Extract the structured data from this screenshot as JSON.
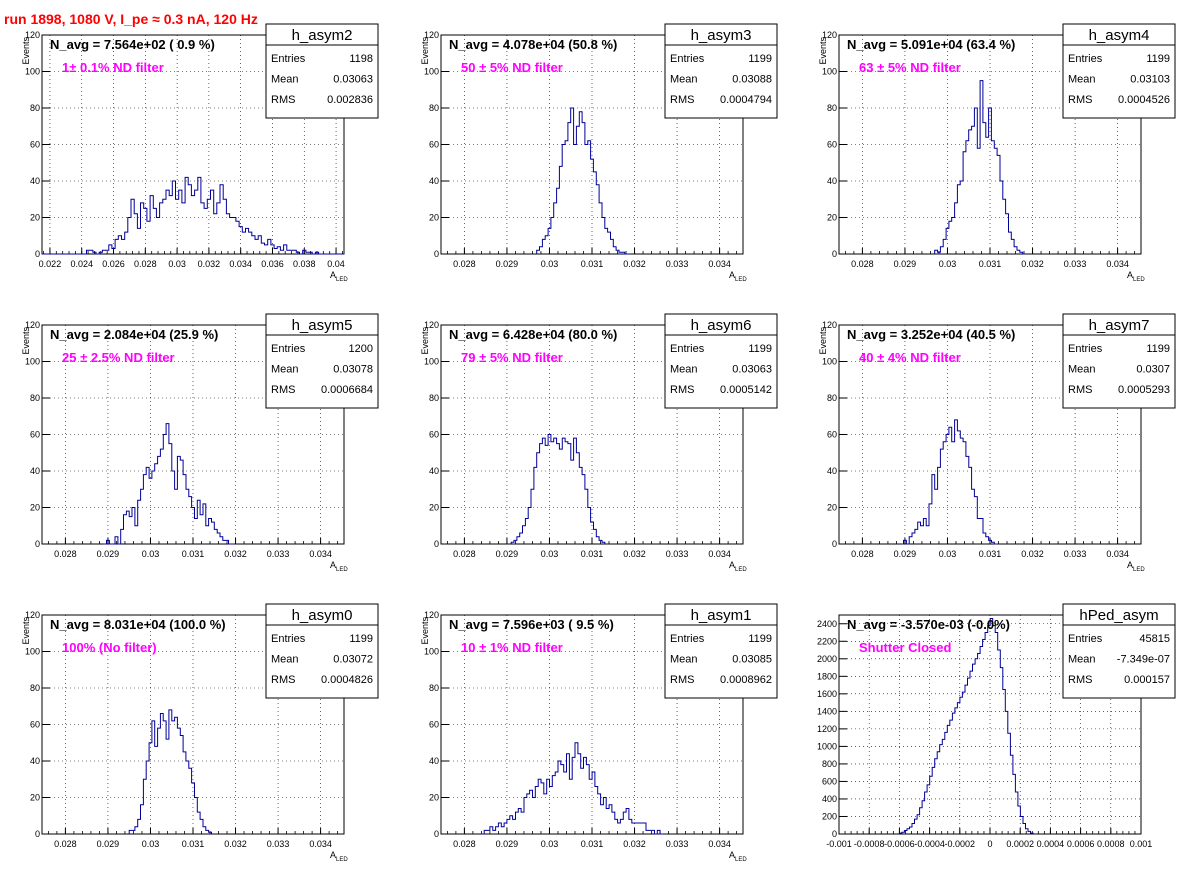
{
  "title": "run 1898,  1080 V, I_pe ≈ 0.3 nA, 120 Hz",
  "chart_data": [
    {
      "type": "bar",
      "subtype": "histogram",
      "name": "h_asym2",
      "navg": "N_avg = 7.564e+02 ( 0.9 %)",
      "filter": "1± 0.1% ND filter",
      "stats": {
        "entries": "1198",
        "mean": "0.03063",
        "rms": "0.002836"
      },
      "xlabel": "A",
      "xlabel_sub": "LED",
      "ylabel": "Events",
      "xlim": [
        0.0215,
        0.0405
      ],
      "ylim": [
        0,
        120
      ],
      "xticks": [
        0.022,
        0.024,
        0.026,
        0.028,
        0.03,
        0.032,
        0.034,
        0.036,
        0.038,
        0.04
      ],
      "xtick_labels": [
        "0.022",
        "0.024",
        "0.026",
        "0.028",
        "0.03",
        "0.032",
        "0.034",
        "0.036",
        "0.038",
        "0.04"
      ],
      "yticks": [
        0,
        20,
        40,
        60,
        80,
        100,
        120
      ],
      "ytick_labels": [
        "0",
        "20",
        "40",
        "60",
        "80",
        "100",
        "120"
      ],
      "bins": {
        "start": 0.0215,
        "width": 0.0002,
        "counts": [
          0,
          0,
          0,
          0,
          0,
          0,
          0,
          0,
          0,
          0,
          0,
          0,
          0,
          0,
          2,
          2,
          1,
          0,
          1,
          2,
          2,
          5,
          3,
          8,
          10,
          8,
          12,
          20,
          30,
          22,
          14,
          28,
          25,
          18,
          32,
          25,
          20,
          28,
          30,
          35,
          32,
          40,
          30,
          35,
          28,
          42,
          38,
          32,
          35,
          42,
          28,
          25,
          30,
          35,
          22,
          28,
          38,
          30,
          22,
          20,
          20,
          18,
          15,
          12,
          14,
          12,
          10,
          8,
          10,
          6,
          5,
          8,
          5,
          3,
          4,
          2,
          5,
          2,
          2,
          2,
          1,
          0,
          2,
          1,
          1,
          0,
          1,
          0,
          0,
          0,
          0,
          0,
          0,
          0,
          0
        ]
      }
    },
    {
      "type": "bar",
      "subtype": "histogram",
      "name": "h_asym3",
      "navg": "N_avg = 4.078e+04 (50.8 %)",
      "filter": "50 ± 5% ND filter",
      "stats": {
        "entries": "1199",
        "mean": "0.03088",
        "rms": "0.0004794"
      },
      "xlabel": "A",
      "xlabel_sub": "LED",
      "ylabel": "Events",
      "xlim": [
        0.02745,
        0.03455
      ],
      "ylim": [
        0,
        120
      ],
      "xticks": [
        0.028,
        0.029,
        0.03,
        0.031,
        0.032,
        0.033,
        0.034
      ],
      "xtick_labels": [
        "0.028",
        "0.029",
        "0.03",
        "0.031",
        "0.032",
        "0.033",
        "0.034"
      ],
      "yticks": [
        0,
        20,
        40,
        60,
        80,
        100,
        120
      ],
      "ytick_labels": [
        "0",
        "20",
        "40",
        "60",
        "80",
        "100",
        "120"
      ],
      "bins": {
        "start": 0.0297,
        "width": 6.67e-05,
        "counts": [
          2,
          4,
          8,
          10,
          14,
          20,
          28,
          36,
          48,
          60,
          62,
          72,
          80,
          60,
          70,
          78,
          72,
          60,
          62,
          52,
          45,
          38,
          28,
          20,
          14,
          12,
          8,
          4,
          2,
          1,
          1,
          0,
          0
        ]
      }
    },
    {
      "type": "bar",
      "subtype": "histogram",
      "name": "h_asym4",
      "navg": "N_avg = 5.091e+04 (63.4 %)",
      "filter": "63 ± 5% ND filter",
      "stats": {
        "entries": "1199",
        "mean": "0.03103",
        "rms": "0.0004526"
      },
      "xlabel": "A",
      "xlabel_sub": "LED",
      "ylabel": "Events",
      "xlim": [
        0.02745,
        0.03455
      ],
      "ylim": [
        0,
        120
      ],
      "xticks": [
        0.028,
        0.029,
        0.03,
        0.031,
        0.032,
        0.033,
        0.034
      ],
      "xtick_labels": [
        "0.028",
        "0.029",
        "0.03",
        "0.031",
        "0.032",
        "0.033",
        "0.034"
      ],
      "yticks": [
        0,
        20,
        40,
        60,
        80,
        100,
        120
      ],
      "ytick_labels": [
        "0",
        "20",
        "40",
        "60",
        "80",
        "100",
        "120"
      ],
      "bins": {
        "start": 0.0297,
        "width": 6.67e-05,
        "counts": [
          2,
          1,
          4,
          8,
          14,
          18,
          20,
          28,
          38,
          40,
          56,
          62,
          68,
          70,
          80,
          58,
          95,
          72,
          64,
          80,
          62,
          58,
          54,
          40,
          30,
          22,
          12,
          8,
          4,
          2,
          1,
          0
        ]
      }
    },
    {
      "type": "bar",
      "subtype": "histogram",
      "name": "h_asym5",
      "navg": "N_avg = 2.084e+04 (25.9 %)",
      "filter": "25 ± 2.5% ND filter",
      "stats": {
        "entries": "1200",
        "mean": "0.03078",
        "rms": "0.0006684"
      },
      "xlabel": "A",
      "xlabel_sub": "LED",
      "ylabel": "Events",
      "xlim": [
        0.02745,
        0.03455
      ],
      "ylim": [
        0,
        120
      ],
      "xticks": [
        0.028,
        0.029,
        0.03,
        0.031,
        0.032,
        0.033,
        0.034
      ],
      "xtick_labels": [
        "0.028",
        "0.029",
        "0.03",
        "0.031",
        "0.032",
        "0.033",
        "0.034"
      ],
      "yticks": [
        0,
        20,
        40,
        60,
        80,
        100,
        120
      ],
      "ytick_labels": [
        "0",
        "20",
        "40",
        "60",
        "80",
        "100",
        "120"
      ],
      "bins": {
        "start": 0.0289,
        "width": 6.67e-05,
        "counts": [
          0,
          2,
          0,
          0,
          4,
          0,
          8,
          16,
          18,
          15,
          20,
          10,
          24,
          30,
          38,
          42,
          36,
          40,
          44,
          48,
          52,
          60,
          66,
          55,
          40,
          30,
          48,
          46,
          38,
          30,
          26,
          20,
          14,
          24,
          16,
          22,
          10,
          14,
          12,
          8,
          6,
          4,
          2,
          2,
          0,
          0
        ]
      }
    },
    {
      "type": "bar",
      "subtype": "histogram",
      "name": "h_asym6",
      "navg": "N_avg = 6.428e+04 (80.0 %)",
      "filter": "79 ± 5% ND filter",
      "stats": {
        "entries": "1199",
        "mean": "0.03063",
        "rms": "0.0005142"
      },
      "xlabel": "A",
      "xlabel_sub": "LED",
      "ylabel": "Events",
      "xlim": [
        0.02745,
        0.03455
      ],
      "ylim": [
        0,
        120
      ],
      "xticks": [
        0.028,
        0.029,
        0.03,
        0.031,
        0.032,
        0.033,
        0.034
      ],
      "xtick_labels": [
        "0.028",
        "0.029",
        "0.03",
        "0.031",
        "0.032",
        "0.033",
        "0.034"
      ],
      "yticks": [
        0,
        20,
        40,
        60,
        80,
        100,
        120
      ],
      "ytick_labels": [
        "0",
        "20",
        "40",
        "60",
        "80",
        "100",
        "120"
      ],
      "bins": {
        "start": 0.0291,
        "width": 6.67e-05,
        "counts": [
          1,
          2,
          4,
          6,
          10,
          14,
          20,
          30,
          42,
          50,
          55,
          58,
          54,
          60,
          56,
          58,
          55,
          52,
          58,
          56,
          55,
          46,
          58,
          50,
          42,
          38,
          30,
          20,
          12,
          8,
          4,
          2,
          1
        ]
      }
    },
    {
      "type": "bar",
      "subtype": "histogram",
      "name": "h_asym7",
      "navg": "N_avg = 3.252e+04 (40.5 %)",
      "filter": "40 ± 4% ND filter",
      "stats": {
        "entries": "1199",
        "mean": "0.0307",
        "rms": "0.0005293"
      },
      "xlabel": "A",
      "xlabel_sub": "LED",
      "ylabel": "Events",
      "xlim": [
        0.02745,
        0.03455
      ],
      "ylim": [
        0,
        120
      ],
      "xticks": [
        0.028,
        0.029,
        0.03,
        0.031,
        0.032,
        0.033,
        0.034
      ],
      "xtick_labels": [
        "0.028",
        "0.029",
        "0.03",
        "0.031",
        "0.032",
        "0.033",
        "0.034"
      ],
      "yticks": [
        0,
        20,
        40,
        60,
        80,
        100,
        120
      ],
      "ytick_labels": [
        "0",
        "20",
        "40",
        "60",
        "80",
        "100",
        "120"
      ],
      "bins": {
        "start": 0.0289,
        "width": 6.67e-05,
        "counts": [
          0,
          2,
          0,
          4,
          6,
          8,
          12,
          10,
          14,
          10,
          22,
          38,
          30,
          42,
          52,
          56,
          60,
          64,
          56,
          68,
          62,
          58,
          56,
          48,
          42,
          30,
          26,
          14,
          14,
          6,
          4,
          2,
          1,
          0
        ]
      }
    },
    {
      "type": "bar",
      "subtype": "histogram",
      "name": "h_asym0",
      "navg": "N_avg = 8.031e+04 (100.0 %)",
      "filter": "100% (No filter)",
      "stats": {
        "entries": "1199",
        "mean": "0.03072",
        "rms": "0.0004826"
      },
      "xlabel": "A",
      "xlabel_sub": "LED",
      "ylabel": "Events",
      "xlim": [
        0.02745,
        0.03455
      ],
      "ylim": [
        0,
        120
      ],
      "xticks": [
        0.028,
        0.029,
        0.03,
        0.031,
        0.032,
        0.033,
        0.034
      ],
      "xtick_labels": [
        "0.028",
        "0.029",
        "0.03",
        "0.031",
        "0.032",
        "0.033",
        "0.034"
      ],
      "yticks": [
        0,
        20,
        40,
        60,
        80,
        100,
        120
      ],
      "ytick_labels": [
        "0",
        "20",
        "40",
        "60",
        "80",
        "100",
        "120"
      ],
      "bins": {
        "start": 0.0295,
        "width": 6.67e-05,
        "counts": [
          2,
          2,
          4,
          8,
          16,
          30,
          40,
          50,
          62,
          48,
          58,
          66,
          62,
          52,
          68,
          62,
          64,
          58,
          54,
          45,
          40,
          36,
          28,
          20,
          12,
          8,
          4,
          2,
          1
        ]
      }
    },
    {
      "type": "bar",
      "subtype": "histogram",
      "name": "h_asym1",
      "navg": "N_avg = 7.596e+03 ( 9.5 %)",
      "filter": "10 ± 1% ND filter",
      "stats": {
        "entries": "1199",
        "mean": "0.03085",
        "rms": "0.0008962"
      },
      "xlabel": "A",
      "xlabel_sub": "LED",
      "ylabel": "Events",
      "xlim": [
        0.02745,
        0.03455
      ],
      "ylim": [
        0,
        120
      ],
      "xticks": [
        0.028,
        0.029,
        0.03,
        0.031,
        0.032,
        0.033,
        0.034
      ],
      "xtick_labels": [
        "0.028",
        "0.029",
        "0.03",
        "0.031",
        "0.032",
        "0.033",
        "0.034"
      ],
      "yticks": [
        0,
        20,
        40,
        60,
        80,
        100,
        120
      ],
      "ytick_labels": [
        "0",
        "20",
        "40",
        "60",
        "80",
        "100",
        "120"
      ],
      "bins": {
        "start": 0.0284,
        "width": 6.67e-05,
        "counts": [
          0,
          2,
          2,
          4,
          2,
          4,
          6,
          4,
          6,
          8,
          10,
          8,
          12,
          14,
          12,
          20,
          22,
          24,
          20,
          26,
          30,
          28,
          22,
          30,
          26,
          32,
          34,
          40,
          38,
          34,
          44,
          30,
          42,
          50,
          44,
          36,
          42,
          38,
          30,
          34,
          26,
          22,
          16,
          20,
          14,
          16,
          12,
          8,
          6,
          8,
          12,
          14,
          8,
          6,
          6,
          6,
          6,
          6,
          2,
          2,
          2,
          0,
          2,
          0
        ]
      }
    },
    {
      "type": "bar",
      "subtype": "histogram",
      "name": "hPed_asym",
      "navg": "N_avg = -3.570e-03 (-0.0%)",
      "filter": "Shutter Closed",
      "stats": {
        "entries": "45815",
        "mean": "-7.349e-07",
        "rms": "0.000157"
      },
      "xlabel": "",
      "xlabel_sub": "",
      "ylabel": "",
      "xlim": [
        -0.001,
        0.001
      ],
      "ylim": [
        0,
        2500
      ],
      "xticks": [
        -0.001,
        -0.0008,
        -0.0006,
        -0.0004,
        -0.0002,
        0,
        0.0002,
        0.0004,
        0.0006,
        0.0008,
        0.001
      ],
      "xtick_labels": [
        "-0.001",
        "-0.0008",
        "-0.0006",
        "-0.0004",
        "-0.0002",
        "0",
        "0.0002",
        "0.0004",
        "0.0006",
        "0.0008",
        "0.001"
      ],
      "yticks": [
        0,
        200,
        400,
        600,
        800,
        1000,
        1200,
        1400,
        1600,
        1800,
        2000,
        2200,
        2400
      ],
      "ytick_labels": [
        "0",
        "200",
        "400",
        "600",
        "800",
        "1000",
        "1200",
        "1400",
        "1600",
        "1800",
        "2000",
        "2200",
        "2400"
      ],
      "bins": {
        "start": -0.0006,
        "width": 1.67e-05,
        "counts": [
          10,
          20,
          40,
          60,
          80,
          120,
          170,
          220,
          300,
          380,
          480,
          560,
          660,
          760,
          860,
          940,
          1020,
          1080,
          1160,
          1240,
          1300,
          1380,
          1440,
          1500,
          1560,
          1620,
          1700,
          1780,
          1860,
          1940,
          2000,
          2060,
          2140,
          2220,
          2300,
          2380,
          2460,
          2380,
          2300,
          2100,
          1900,
          1650,
          1400,
          1150,
          900,
          680,
          480,
          320,
          200,
          120,
          60,
          30,
          10
        ]
      }
    }
  ]
}
